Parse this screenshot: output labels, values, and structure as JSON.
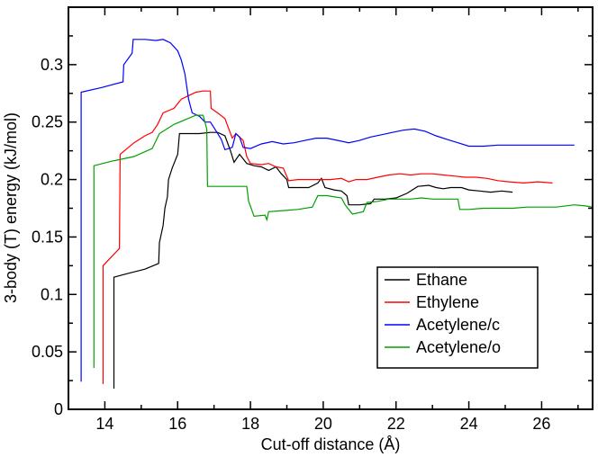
{
  "chart_data": {
    "type": "line",
    "xlabel": "Cut-off distance (Å)",
    "ylabel": "3-body (T) energy (kJ/mol)",
    "xlim": [
      13,
      27.4
    ],
    "ylim": [
      0,
      0.35
    ],
    "x_ticks": [
      14,
      16,
      18,
      20,
      22,
      24,
      26
    ],
    "y_ticks": [
      0,
      0.05,
      0.1,
      0.15,
      0.2,
      0.25,
      0.3
    ],
    "y_tick_labels": [
      "0",
      "0.05",
      "0.1",
      "0.15",
      "0.2",
      "0.25",
      "0.3"
    ],
    "grid": false,
    "legend_position": "bottom-right",
    "series": [
      {
        "name": "Ethane",
        "color": "#000000",
        "points": [
          [
            14.25,
            0.018
          ],
          [
            14.25,
            0.115
          ],
          [
            14.6,
            0.118
          ],
          [
            15.1,
            0.122
          ],
          [
            15.48,
            0.127
          ],
          [
            15.5,
            0.145
          ],
          [
            15.6,
            0.16
          ],
          [
            15.65,
            0.175
          ],
          [
            15.72,
            0.185
          ],
          [
            15.75,
            0.2
          ],
          [
            15.85,
            0.21
          ],
          [
            16.0,
            0.222
          ],
          [
            16.05,
            0.24
          ],
          [
            16.3,
            0.24
          ],
          [
            16.6,
            0.24
          ],
          [
            16.9,
            0.241
          ],
          [
            17.1,
            0.241
          ],
          [
            17.3,
            0.238
          ],
          [
            17.45,
            0.225
          ],
          [
            17.55,
            0.215
          ],
          [
            17.7,
            0.222
          ],
          [
            17.8,
            0.218
          ],
          [
            17.9,
            0.214
          ],
          [
            18.1,
            0.212
          ],
          [
            18.3,
            0.211
          ],
          [
            18.5,
            0.208
          ],
          [
            18.7,
            0.211
          ],
          [
            18.85,
            0.205
          ],
          [
            19.0,
            0.2
          ],
          [
            19.05,
            0.193
          ],
          [
            19.3,
            0.193
          ],
          [
            19.6,
            0.193
          ],
          [
            19.85,
            0.197
          ],
          [
            19.95,
            0.201
          ],
          [
            20.05,
            0.193
          ],
          [
            20.3,
            0.191
          ],
          [
            20.5,
            0.19
          ],
          [
            20.65,
            0.186
          ],
          [
            20.7,
            0.178
          ],
          [
            21.0,
            0.178
          ],
          [
            21.3,
            0.179
          ],
          [
            21.4,
            0.183
          ],
          [
            21.7,
            0.183
          ],
          [
            22.0,
            0.184
          ],
          [
            22.3,
            0.188
          ],
          [
            22.6,
            0.194
          ],
          [
            22.9,
            0.195
          ],
          [
            23.1,
            0.193
          ],
          [
            23.3,
            0.192
          ],
          [
            23.5,
            0.193
          ],
          [
            23.8,
            0.193
          ],
          [
            24.0,
            0.191
          ],
          [
            24.3,
            0.19
          ],
          [
            24.6,
            0.189
          ],
          [
            24.9,
            0.19
          ],
          [
            25.2,
            0.189
          ]
        ]
      },
      {
        "name": "Ethylene",
        "color": "#ff0000",
        "points": [
          [
            13.95,
            0.022
          ],
          [
            13.95,
            0.125
          ],
          [
            14.4,
            0.14
          ],
          [
            14.42,
            0.222
          ],
          [
            14.8,
            0.232
          ],
          [
            15.1,
            0.238
          ],
          [
            15.3,
            0.241
          ],
          [
            15.45,
            0.248
          ],
          [
            15.6,
            0.258
          ],
          [
            15.9,
            0.262
          ],
          [
            16.1,
            0.27
          ],
          [
            16.3,
            0.273
          ],
          [
            16.5,
            0.276
          ],
          [
            16.7,
            0.277
          ],
          [
            16.9,
            0.277
          ],
          [
            16.92,
            0.262
          ],
          [
            17.1,
            0.258
          ],
          [
            17.3,
            0.253
          ],
          [
            17.5,
            0.236
          ],
          [
            17.6,
            0.24
          ],
          [
            17.8,
            0.234
          ],
          [
            17.9,
            0.22
          ],
          [
            18.0,
            0.214
          ],
          [
            18.3,
            0.213
          ],
          [
            18.5,
            0.214
          ],
          [
            18.7,
            0.211
          ],
          [
            18.9,
            0.21
          ],
          [
            19.05,
            0.199
          ],
          [
            19.3,
            0.2
          ],
          [
            19.6,
            0.2
          ],
          [
            19.9,
            0.2
          ],
          [
            20.2,
            0.2
          ],
          [
            20.5,
            0.201
          ],
          [
            20.7,
            0.198
          ],
          [
            20.9,
            0.2
          ],
          [
            21.2,
            0.2
          ],
          [
            21.5,
            0.202
          ],
          [
            21.8,
            0.204
          ],
          [
            22.1,
            0.205
          ],
          [
            22.4,
            0.204
          ],
          [
            22.7,
            0.205
          ],
          [
            23.0,
            0.205
          ],
          [
            23.3,
            0.204
          ],
          [
            23.6,
            0.203
          ],
          [
            23.9,
            0.202
          ],
          [
            24.2,
            0.202
          ],
          [
            24.5,
            0.201
          ],
          [
            24.8,
            0.199
          ],
          [
            25.1,
            0.198
          ],
          [
            25.5,
            0.197
          ],
          [
            25.9,
            0.198
          ],
          [
            26.3,
            0.197
          ]
        ]
      },
      {
        "name": "Acetylene/c",
        "color": "#0000ff",
        "points": [
          [
            13.35,
            0.024
          ],
          [
            13.35,
            0.276
          ],
          [
            13.9,
            0.28
          ],
          [
            14.5,
            0.285
          ],
          [
            14.52,
            0.3
          ],
          [
            14.75,
            0.31
          ],
          [
            14.78,
            0.322
          ],
          [
            15.1,
            0.322
          ],
          [
            15.4,
            0.321
          ],
          [
            15.6,
            0.322
          ],
          [
            15.8,
            0.319
          ],
          [
            16.0,
            0.312
          ],
          [
            16.1,
            0.304
          ],
          [
            16.2,
            0.292
          ],
          [
            16.3,
            0.27
          ],
          [
            16.4,
            0.258
          ],
          [
            16.6,
            0.255
          ],
          [
            16.75,
            0.25
          ],
          [
            16.9,
            0.25
          ],
          [
            17.0,
            0.245
          ],
          [
            17.2,
            0.235
          ],
          [
            17.3,
            0.226
          ],
          [
            17.5,
            0.228
          ],
          [
            17.6,
            0.24
          ],
          [
            17.7,
            0.237
          ],
          [
            17.8,
            0.228
          ],
          [
            18.0,
            0.227
          ],
          [
            18.3,
            0.231
          ],
          [
            18.6,
            0.233
          ],
          [
            18.9,
            0.231
          ],
          [
            19.2,
            0.232
          ],
          [
            19.5,
            0.234
          ],
          [
            19.8,
            0.236
          ],
          [
            20.1,
            0.236
          ],
          [
            20.4,
            0.234
          ],
          [
            20.7,
            0.232
          ],
          [
            21.0,
            0.234
          ],
          [
            21.3,
            0.237
          ],
          [
            21.6,
            0.239
          ],
          [
            21.9,
            0.241
          ],
          [
            22.2,
            0.243
          ],
          [
            22.5,
            0.244
          ],
          [
            22.8,
            0.242
          ],
          [
            23.1,
            0.238
          ],
          [
            23.4,
            0.235
          ],
          [
            23.7,
            0.232
          ],
          [
            24.0,
            0.229
          ],
          [
            24.4,
            0.229
          ],
          [
            24.8,
            0.23
          ],
          [
            25.3,
            0.23
          ],
          [
            25.8,
            0.23
          ],
          [
            26.3,
            0.23
          ],
          [
            26.9,
            0.23
          ]
        ]
      },
      {
        "name": "Acetylene/o",
        "color": "#00a000",
        "points": [
          [
            13.7,
            0.036
          ],
          [
            13.7,
            0.212
          ],
          [
            14.2,
            0.216
          ],
          [
            14.8,
            0.22
          ],
          [
            15.3,
            0.227
          ],
          [
            15.5,
            0.24
          ],
          [
            15.9,
            0.248
          ],
          [
            16.2,
            0.252
          ],
          [
            16.5,
            0.256
          ],
          [
            16.7,
            0.256
          ],
          [
            16.8,
            0.244
          ],
          [
            16.82,
            0.194
          ],
          [
            17.2,
            0.194
          ],
          [
            17.6,
            0.194
          ],
          [
            17.9,
            0.194
          ],
          [
            17.95,
            0.181
          ],
          [
            18.1,
            0.168
          ],
          [
            18.4,
            0.169
          ],
          [
            18.45,
            0.165
          ],
          [
            18.5,
            0.172
          ],
          [
            18.9,
            0.173
          ],
          [
            19.3,
            0.174
          ],
          [
            19.7,
            0.176
          ],
          [
            19.85,
            0.186
          ],
          [
            20.1,
            0.186
          ],
          [
            20.5,
            0.184
          ],
          [
            20.6,
            0.178
          ],
          [
            20.8,
            0.17
          ],
          [
            21.1,
            0.172
          ],
          [
            21.2,
            0.18
          ],
          [
            21.5,
            0.181
          ],
          [
            21.8,
            0.183
          ],
          [
            22.1,
            0.183
          ],
          [
            22.4,
            0.183
          ],
          [
            22.7,
            0.184
          ],
          [
            23.0,
            0.183
          ],
          [
            23.4,
            0.183
          ],
          [
            23.7,
            0.183
          ],
          [
            23.75,
            0.174
          ],
          [
            24.0,
            0.174
          ],
          [
            24.4,
            0.175
          ],
          [
            24.8,
            0.175
          ],
          [
            25.2,
            0.175
          ],
          [
            25.6,
            0.176
          ],
          [
            26.0,
            0.176
          ],
          [
            26.4,
            0.176
          ],
          [
            26.9,
            0.178
          ],
          [
            27.2,
            0.177
          ],
          [
            27.4,
            0.176
          ]
        ]
      }
    ]
  }
}
